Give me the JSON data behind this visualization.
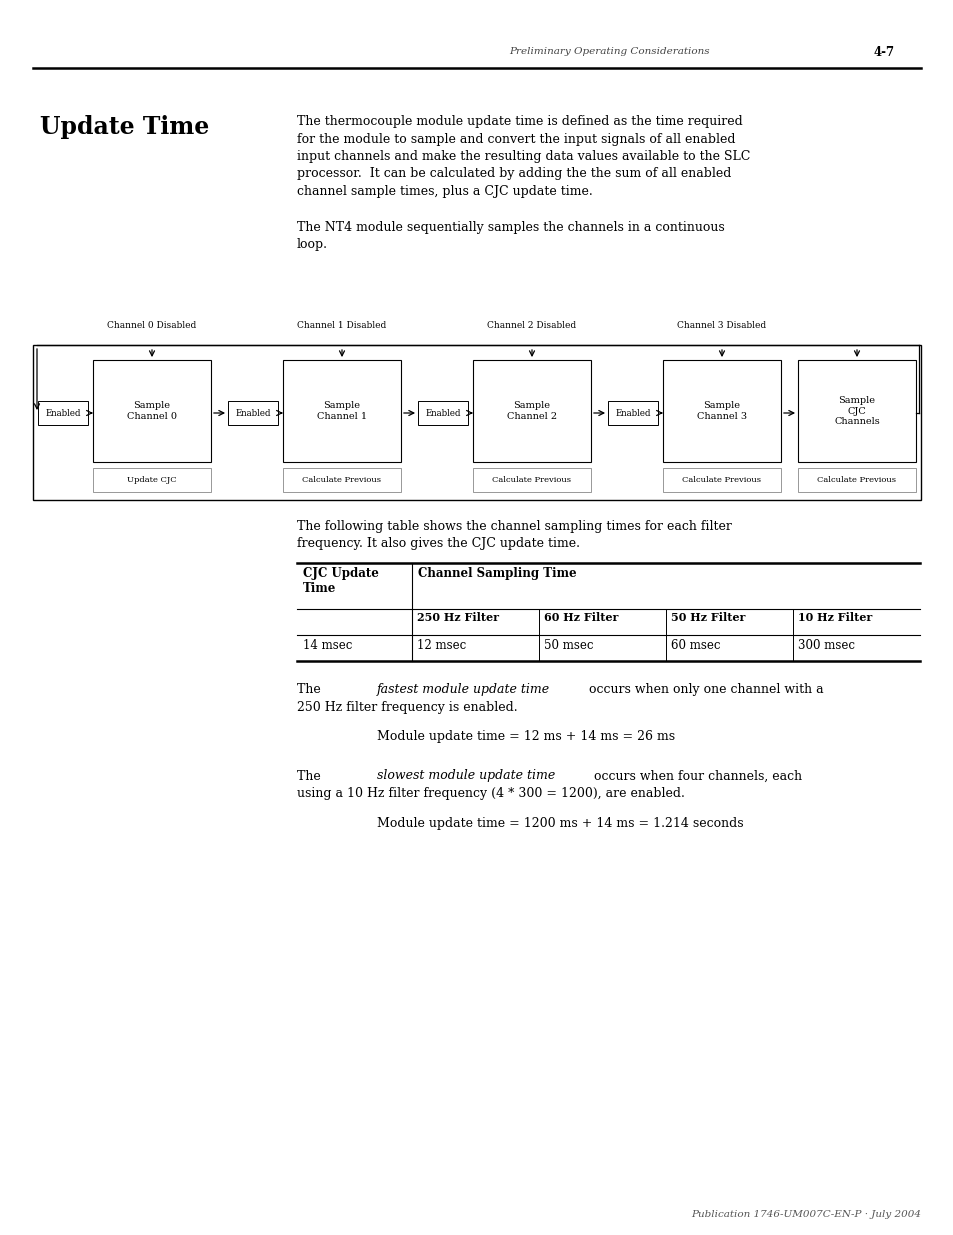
{
  "page_header_text": "Preliminary Operating Considerations",
  "page_number": "4-7",
  "section_title": "Update Time",
  "body_text_1_lines": [
    "The thermocouple module update time is defined as the time required",
    "for the module to sample and convert the input signals of all enabled",
    "input channels and make the resulting data values available to the SLC",
    "processor.  It can be calculated by adding the the sum of all enabled",
    "channel sample times, plus a CJC update time."
  ],
  "body_text_2_lines": [
    "The NT4 module sequentially samples the channels in a continuous",
    "loop."
  ],
  "diagram_channels": [
    {
      "label": "Channel 0 Disabled",
      "box_top": "Sample\nChannel 0",
      "box_bottom": "Update CJC",
      "has_enabled": true
    },
    {
      "label": "Channel 1 Disabled",
      "box_top": "Sample\nChannel 1",
      "box_bottom": "Calculate Previous",
      "has_enabled": true
    },
    {
      "label": "Channel 2 Disabled",
      "box_top": "Sample\nChannel 2",
      "box_bottom": "Calculate Previous",
      "has_enabled": true
    },
    {
      "label": "Channel 3 Disabled",
      "box_top": "Sample\nChannel 3",
      "box_bottom": "Calculate Previous",
      "has_enabled": true
    },
    {
      "label": "",
      "box_top": "Sample\nCJC\nChannels",
      "box_bottom": "Calculate Previous",
      "has_enabled": false
    }
  ],
  "table_intro_lines": [
    "The following table shows the channel sampling times for each filter",
    "frequency. It also gives the CJC update time."
  ],
  "table_col1_header": "CJC Update\nTime",
  "table_col2_header": "Channel Sampling Time",
  "table_subheaders": [
    "250 Hz Filter",
    "60 Hz Filter",
    "50 Hz Filter",
    "10 Hz Filter"
  ],
  "table_row": [
    "14 msec",
    "12 msec",
    "50 msec",
    "60 msec",
    "300 msec"
  ],
  "fastest_italic": "fastest module update time",
  "fastest_rest_line1": " occurs when only one channel with a",
  "fastest_rest_line2": "250 Hz filter frequency is enabled.",
  "fastest_formula": "Module update time = 12 ms + 14 ms = 26 ms",
  "slowest_italic": "slowest module update time",
  "slowest_rest_line1": " occurs when four channels, each",
  "slowest_rest_line2": "using a 10 Hz filter frequency (4 * 300 = 1200), are enabled.",
  "slowest_formula": "Module update time = 1200 ms + 14 ms = 1.214 seconds",
  "footer_text": "Publication 1746-UM007C-EN-P · July 2004",
  "bg_color": "#ffffff",
  "text_color": "#000000"
}
